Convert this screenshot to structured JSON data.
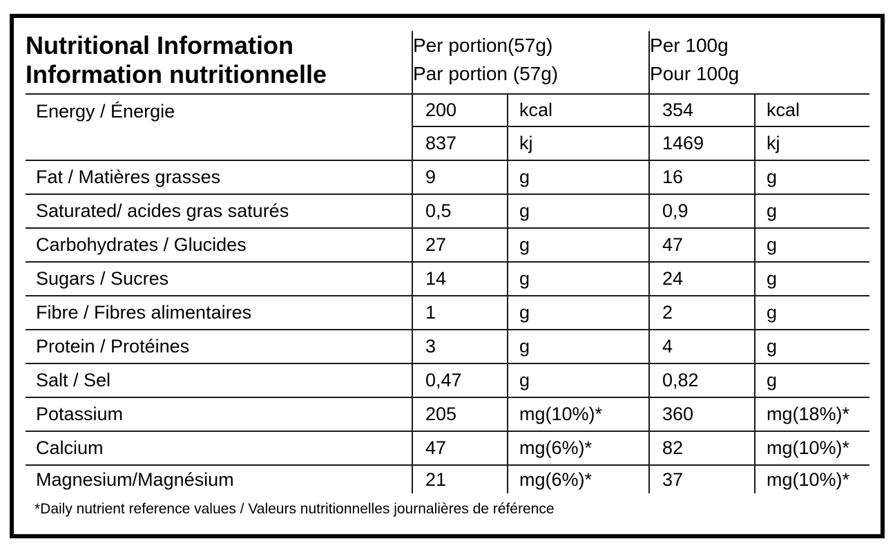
{
  "header": {
    "title_line1": "Nutritional Information",
    "title_line2": "Information nutritionnelle",
    "per_portion": {
      "line1": "Per portion(57g)",
      "line2": "Par portion (57g)"
    },
    "per_100g": {
      "line1": "Per 100g",
      "line2": "Pour 100g"
    }
  },
  "rows": [
    {
      "label": "Energy / Énergie",
      "lines": [
        {
          "per_portion_value": "200",
          "per_portion_unit": "kcal",
          "per_100g_value": "354",
          "per_100g_unit": "kcal"
        },
        {
          "per_portion_value": "837",
          "per_portion_unit": "kj",
          "per_100g_value": "1469",
          "per_100g_unit": "kj"
        }
      ]
    },
    {
      "label": "Fat / Matières grasses",
      "lines": [
        {
          "per_portion_value": "9",
          "per_portion_unit": "g",
          "per_100g_value": "16",
          "per_100g_unit": "g"
        }
      ]
    },
    {
      "label": "Saturated/ acides gras saturés",
      "lines": [
        {
          "per_portion_value": "0,5",
          "per_portion_unit": "g",
          "per_100g_value": "0,9",
          "per_100g_unit": "g"
        }
      ]
    },
    {
      "label": "Carbohydrates / Glucides",
      "lines": [
        {
          "per_portion_value": "27",
          "per_portion_unit": "g",
          "per_100g_value": "47",
          "per_100g_unit": "g"
        }
      ]
    },
    {
      "label": "Sugars / Sucres",
      "lines": [
        {
          "per_portion_value": "14",
          "per_portion_unit": "g",
          "per_100g_value": "24",
          "per_100g_unit": "g"
        }
      ]
    },
    {
      "label": "Fibre / Fibres alimentaires",
      "lines": [
        {
          "per_portion_value": "1",
          "per_portion_unit": "g",
          "per_100g_value": "2",
          "per_100g_unit": "g"
        }
      ]
    },
    {
      "label": "Protein / Protéines",
      "lines": [
        {
          "per_portion_value": "3",
          "per_portion_unit": "g",
          "per_100g_value": "4",
          "per_100g_unit": "g"
        }
      ]
    },
    {
      "label": "Salt / Sel",
      "lines": [
        {
          "per_portion_value": "0,47",
          "per_portion_unit": "g",
          "per_100g_value": "0,82",
          "per_100g_unit": "g"
        }
      ]
    },
    {
      "label": "Potassium",
      "lines": [
        {
          "per_portion_value": "205",
          "per_portion_unit": "mg(10%)*",
          "per_100g_value": "360",
          "per_100g_unit": "mg(18%)*"
        }
      ]
    },
    {
      "label": "Calcium",
      "lines": [
        {
          "per_portion_value": "47",
          "per_portion_unit": "mg(6%)*",
          "per_100g_value": "82",
          "per_100g_unit": "mg(10%)*"
        }
      ]
    },
    {
      "label": "Magnesium/Magnésium",
      "lines": [
        {
          "per_portion_value": "21",
          "per_portion_unit": "mg(6%)*",
          "per_100g_value": "37",
          "per_100g_unit": "mg(10%)*"
        }
      ]
    }
  ],
  "footnote": "*Daily nutrient reference values / Valeurs nutritionnelles journalières de référence",
  "colors": {
    "background": "#ffffff",
    "text": "#000000",
    "grid_line": "#1a1a1a",
    "outer_border": "#050505"
  }
}
